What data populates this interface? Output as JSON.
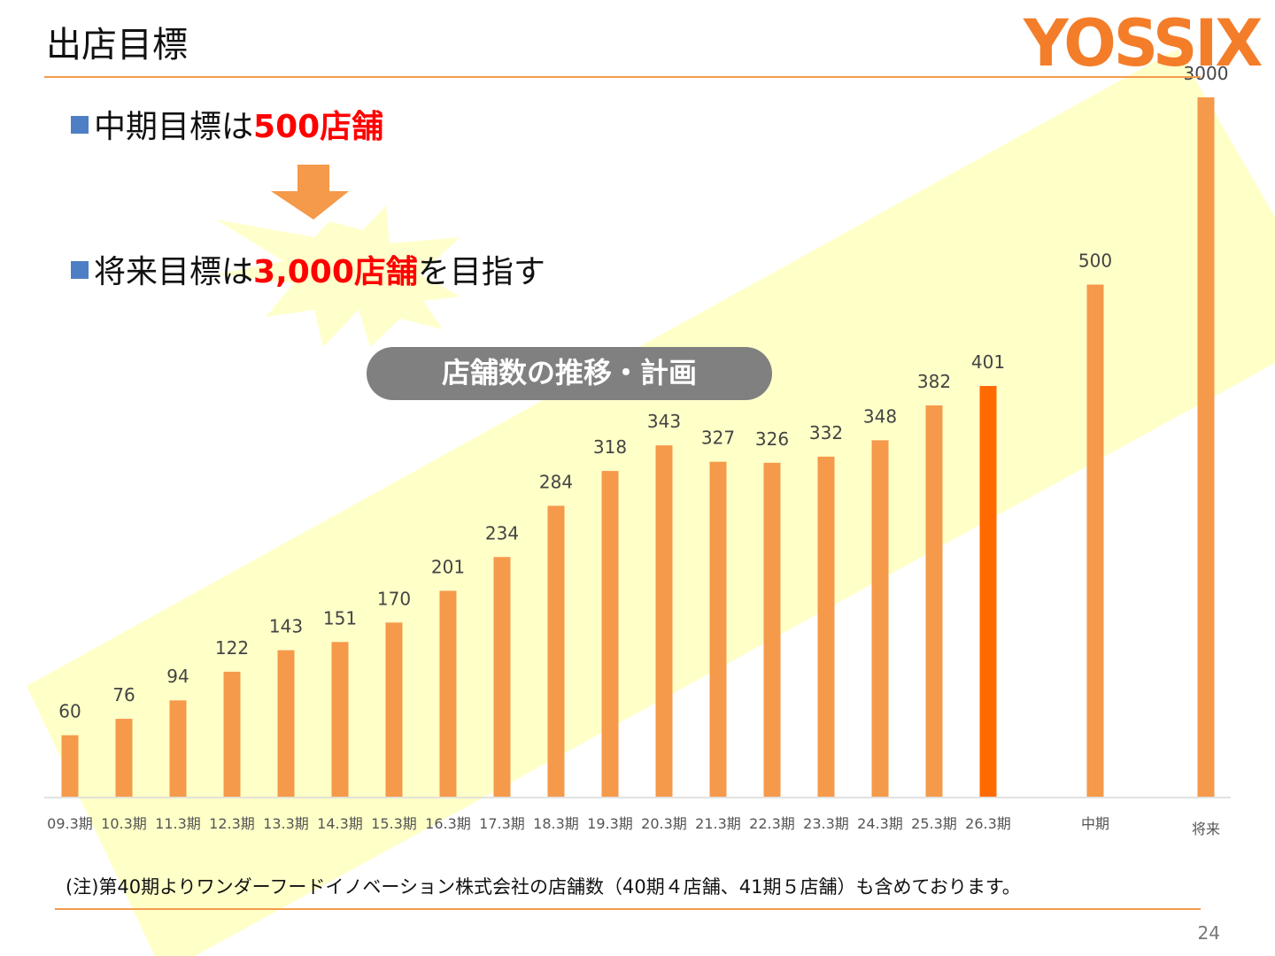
{
  "header": {
    "title": "出店目標",
    "logo": "YOSSIX",
    "page_number": "24"
  },
  "bullets": [
    {
      "prefix": "中期目標は",
      "highlight": "500店舗",
      "suffix": ""
    },
    {
      "prefix": "将来目標は",
      "highlight": "3,000店舗",
      "suffix": "を目指す"
    }
  ],
  "pill_label": "店舗数の推移・計画",
  "footnote": "(注)第40期よりワンダーフードイノベーション株式会社の店舗数（40期４店舗、41期５店舗）も含めております。",
  "colors": {
    "bar": "#f5994a",
    "bar_highlight": "#ff6a00",
    "accent_line": "#f49a4d",
    "bullet_square": "#4e7fc4",
    "highlight_text": "#ff0000",
    "band": "#ffffc8"
  },
  "chart_data": {
    "type": "bar",
    "title": "",
    "xlabel": "",
    "ylabel": "",
    "categories": [
      "09.3期",
      "10.3期",
      "11.3期",
      "12.3期",
      "13.3期",
      "14.3期",
      "15.3期",
      "16.3期",
      "17.3期",
      "18.3期",
      "19.3期",
      "20.3期",
      "21.3期",
      "22.3期",
      "23.3期",
      "24.3期",
      "25.3期",
      "26.3期",
      "中期",
      "将来"
    ],
    "values": [
      60,
      76,
      94,
      122,
      143,
      151,
      170,
      201,
      234,
      284,
      318,
      343,
      327,
      326,
      332,
      348,
      382,
      401,
      500,
      3000
    ],
    "highlight_index": 17,
    "legend": "none",
    "grid": false
  }
}
